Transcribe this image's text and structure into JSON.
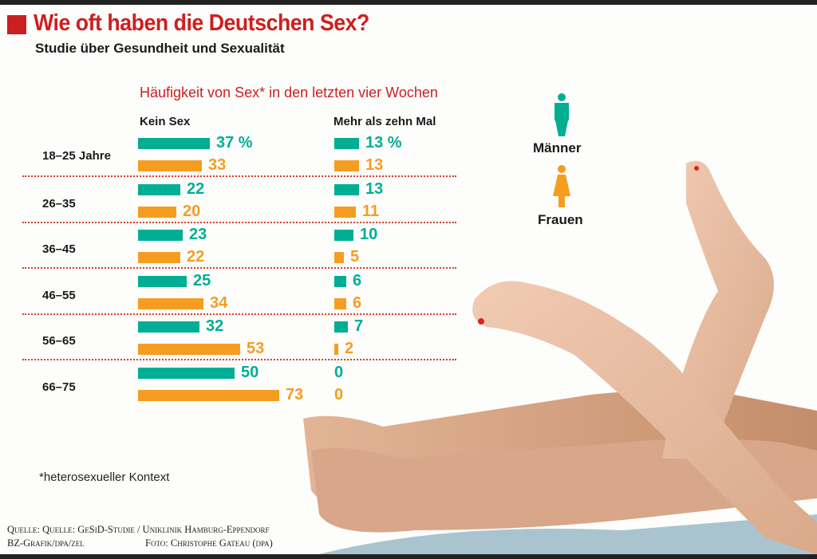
{
  "header": {
    "title": "Wie oft haben die Deutschen Sex?",
    "subtitle": "Studie über Gesundheit und Sexualität"
  },
  "chart": {
    "heading": "Häufigkeit von Sex* in den letzten vier Wochen",
    "col_left": "Kein Sex",
    "col_right": "Mehr als zehn Mal",
    "rows": [
      {
        "age": "18–25 Jahre",
        "men_none": "37 %",
        "women_none": "33",
        "men_more": "13 %",
        "women_more": "13"
      },
      {
        "age": "26–35",
        "men_none": "22",
        "women_none": "20",
        "men_more": "13",
        "women_more": "11"
      },
      {
        "age": "36–45",
        "men_none": "23",
        "women_none": "22",
        "men_more": "10",
        "women_more": "5"
      },
      {
        "age": "46–55",
        "men_none": "25",
        "women_none": "34",
        "men_more": "6",
        "women_more": "6"
      },
      {
        "age": "56–65",
        "men_none": "32",
        "women_none": "53",
        "men_more": "7",
        "women_more": "2"
      },
      {
        "age": "66–75",
        "men_none": "50",
        "women_none": "73",
        "men_more": "0",
        "women_more": "0"
      }
    ]
  },
  "legend": {
    "men": "Männer",
    "women": "Frauen"
  },
  "colors": {
    "men": "#00ae94",
    "women": "#f59d20",
    "accent": "#cc1f1f"
  },
  "footnote": "*heterosexueller Kontext",
  "source": {
    "line1": "Quelle: Quelle: GeSiD-Studie / Uniklinik Hamburg-Eppendorf",
    "line2_left": "BZ-Grafik/dpa/zel",
    "line2_right": "Foto: Christophe Gateau (dpa)"
  },
  "chart_data": {
    "type": "bar",
    "orientation": "horizontal",
    "title": "Wie oft haben die Deutschen Sex?",
    "subtitle": "Studie über Gesundheit und Sexualität",
    "heading": "Häufigkeit von Sex* in den letzten vier Wochen",
    "unit": "%",
    "categories": [
      "18–25 Jahre",
      "26–35",
      "36–45",
      "46–55",
      "56–65",
      "66–75"
    ],
    "panels": [
      {
        "name": "Kein Sex",
        "series": [
          {
            "name": "Männer",
            "color": "#00ae94",
            "values": [
              37,
              22,
              23,
              25,
              32,
              50
            ]
          },
          {
            "name": "Frauen",
            "color": "#f59d20",
            "values": [
              33,
              20,
              22,
              34,
              53,
              73
            ]
          }
        ]
      },
      {
        "name": "Mehr als zehn Mal",
        "series": [
          {
            "name": "Männer",
            "color": "#00ae94",
            "values": [
              13,
              13,
              10,
              6,
              7,
              0
            ]
          },
          {
            "name": "Frauen",
            "color": "#f59d20",
            "values": [
              13,
              11,
              5,
              6,
              2,
              0
            ]
          }
        ]
      }
    ],
    "legend": [
      "Männer",
      "Frauen"
    ],
    "legend_position": "right",
    "footnote": "*heterosexueller Kontext",
    "grid": false
  }
}
